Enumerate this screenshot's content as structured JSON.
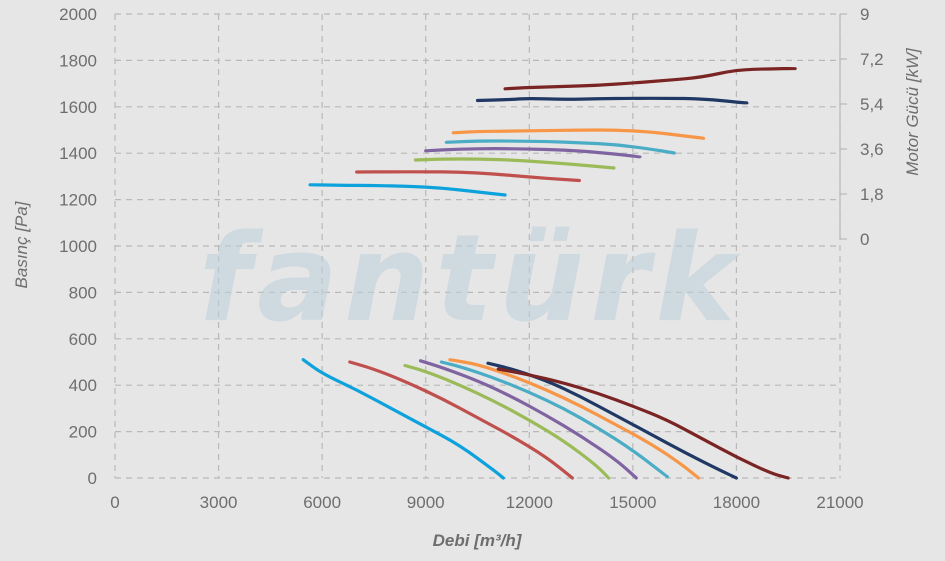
{
  "chart_data": {
    "type": "line",
    "watermark": "fantürk",
    "xlabel": "Debi [m³/h]",
    "ylabel": "Basınç [Pa]",
    "y2label": "Motor Gücü [kW]",
    "xlim": [
      0,
      21000
    ],
    "ylim": [
      0,
      2000
    ],
    "y2lim": [
      0,
      9
    ],
    "xticks": [
      "0",
      "3000",
      "6000",
      "9000",
      "12000",
      "15000",
      "18000",
      "21000"
    ],
    "yticks": [
      "0",
      "200",
      "400",
      "600",
      "800",
      "1000",
      "1200",
      "1400",
      "1600",
      "1800",
      "2000"
    ],
    "y2ticks": [
      "0",
      "1,8",
      "3,6",
      "5,4",
      "7,2",
      "9"
    ],
    "grid": true,
    "series": [
      {
        "color": "#0ea2dd",
        "axis": "pressure",
        "points": [
          [
            5450,
            510
          ],
          [
            6000,
            450
          ],
          [
            7000,
            380
          ],
          [
            8000,
            300
          ],
          [
            9000,
            220
          ],
          [
            10000,
            140
          ],
          [
            11000,
            30
          ],
          [
            11250,
            0
          ]
        ]
      },
      {
        "color": "#c0504d",
        "axis": "pressure",
        "points": [
          [
            6800,
            500
          ],
          [
            7500,
            470
          ],
          [
            8500,
            410
          ],
          [
            9500,
            340
          ],
          [
            10500,
            260
          ],
          [
            11500,
            180
          ],
          [
            12500,
            90
          ],
          [
            13250,
            0
          ]
        ]
      },
      {
        "color": "#9bbb59",
        "axis": "pressure",
        "points": [
          [
            8400,
            485
          ],
          [
            9000,
            460
          ],
          [
            10000,
            400
          ],
          [
            11000,
            330
          ],
          [
            12000,
            250
          ],
          [
            13000,
            160
          ],
          [
            13900,
            60
          ],
          [
            14300,
            0
          ]
        ]
      },
      {
        "color": "#8064a2",
        "axis": "pressure",
        "points": [
          [
            8850,
            505
          ],
          [
            9500,
            475
          ],
          [
            10500,
            420
          ],
          [
            11500,
            350
          ],
          [
            12500,
            270
          ],
          [
            13500,
            180
          ],
          [
            14500,
            80
          ],
          [
            15100,
            0
          ]
        ]
      },
      {
        "color": "#4bacc6",
        "axis": "pressure",
        "points": [
          [
            9450,
            500
          ],
          [
            10000,
            480
          ],
          [
            11000,
            430
          ],
          [
            12000,
            370
          ],
          [
            13000,
            300
          ],
          [
            14000,
            215
          ],
          [
            15000,
            120
          ],
          [
            16000,
            5
          ]
        ]
      },
      {
        "color": "#f79646",
        "axis": "pressure",
        "points": [
          [
            9700,
            510
          ],
          [
            10500,
            490
          ],
          [
            11500,
            440
          ],
          [
            12500,
            380
          ],
          [
            13500,
            310
          ],
          [
            14500,
            230
          ],
          [
            15500,
            150
          ],
          [
            16400,
            60
          ],
          [
            16900,
            0
          ]
        ]
      },
      {
        "color": "#1f3864",
        "axis": "pressure",
        "points": [
          [
            10800,
            495
          ],
          [
            11500,
            470
          ],
          [
            12500,
            420
          ],
          [
            13500,
            350
          ],
          [
            14500,
            270
          ],
          [
            15500,
            190
          ],
          [
            16500,
            110
          ],
          [
            17500,
            35
          ],
          [
            18000,
            0
          ]
        ]
      },
      {
        "color": "#7b2424",
        "axis": "pressure",
        "points": [
          [
            11100,
            470
          ],
          [
            12000,
            445
          ],
          [
            13000,
            410
          ],
          [
            14000,
            365
          ],
          [
            15000,
            310
          ],
          [
            16000,
            250
          ],
          [
            17000,
            170
          ],
          [
            18000,
            90
          ],
          [
            19000,
            20
          ],
          [
            19500,
            0
          ]
        ]
      },
      {
        "color": "#0ea2dd",
        "axis": "power",
        "points": [
          [
            5650,
            2.17
          ],
          [
            6500,
            2.15
          ],
          [
            7500,
            2.14
          ],
          [
            8500,
            2.11
          ],
          [
            9500,
            2.04
          ],
          [
            10500,
            1.88
          ],
          [
            11300,
            1.76
          ]
        ]
      },
      {
        "color": "#c0504d",
        "axis": "power",
        "points": [
          [
            7000,
            2.68
          ],
          [
            8000,
            2.69
          ],
          [
            9000,
            2.69
          ],
          [
            10000,
            2.68
          ],
          [
            11000,
            2.6
          ],
          [
            12000,
            2.48
          ],
          [
            13000,
            2.38
          ],
          [
            13450,
            2.34
          ]
        ]
      },
      {
        "color": "#9bbb59",
        "axis": "power",
        "points": [
          [
            8700,
            3.16
          ],
          [
            9500,
            3.2
          ],
          [
            10500,
            3.2
          ],
          [
            11500,
            3.16
          ],
          [
            12500,
            3.07
          ],
          [
            13500,
            2.96
          ],
          [
            14450,
            2.84
          ]
        ]
      },
      {
        "color": "#8064a2",
        "axis": "power",
        "points": [
          [
            9000,
            3.53
          ],
          [
            10000,
            3.6
          ],
          [
            11000,
            3.62
          ],
          [
            12000,
            3.6
          ],
          [
            13000,
            3.56
          ],
          [
            14000,
            3.47
          ],
          [
            15200,
            3.29
          ]
        ]
      },
      {
        "color": "#4bacc6",
        "axis": "power",
        "points": [
          [
            9600,
            3.87
          ],
          [
            10500,
            3.92
          ],
          [
            11500,
            3.92
          ],
          [
            12500,
            3.9
          ],
          [
            13500,
            3.85
          ],
          [
            14500,
            3.78
          ],
          [
            15500,
            3.6
          ],
          [
            16200,
            3.44
          ]
        ]
      },
      {
        "color": "#f79646",
        "axis": "power",
        "points": [
          [
            9800,
            4.25
          ],
          [
            10500,
            4.3
          ],
          [
            11500,
            4.32
          ],
          [
            12500,
            4.34
          ],
          [
            13500,
            4.36
          ],
          [
            14500,
            4.36
          ],
          [
            15500,
            4.29
          ],
          [
            16500,
            4.12
          ],
          [
            17050,
            4.03
          ]
        ]
      },
      {
        "color": "#1f3864",
        "axis": "power",
        "points": [
          [
            10500,
            5.54
          ],
          [
            11500,
            5.58
          ],
          [
            12000,
            5.63
          ],
          [
            13000,
            5.58
          ],
          [
            14000,
            5.61
          ],
          [
            15000,
            5.63
          ],
          [
            16000,
            5.63
          ],
          [
            17000,
            5.61
          ],
          [
            18300,
            5.44
          ]
        ]
      },
      {
        "color": "#7b2424",
        "axis": "power",
        "points": [
          [
            11300,
            6.01
          ],
          [
            12000,
            6.06
          ],
          [
            13000,
            6.1
          ],
          [
            14000,
            6.15
          ],
          [
            15000,
            6.24
          ],
          [
            16000,
            6.35
          ],
          [
            17000,
            6.47
          ],
          [
            18000,
            6.77
          ],
          [
            19000,
            6.81
          ],
          [
            19700,
            6.82
          ]
        ]
      }
    ]
  }
}
